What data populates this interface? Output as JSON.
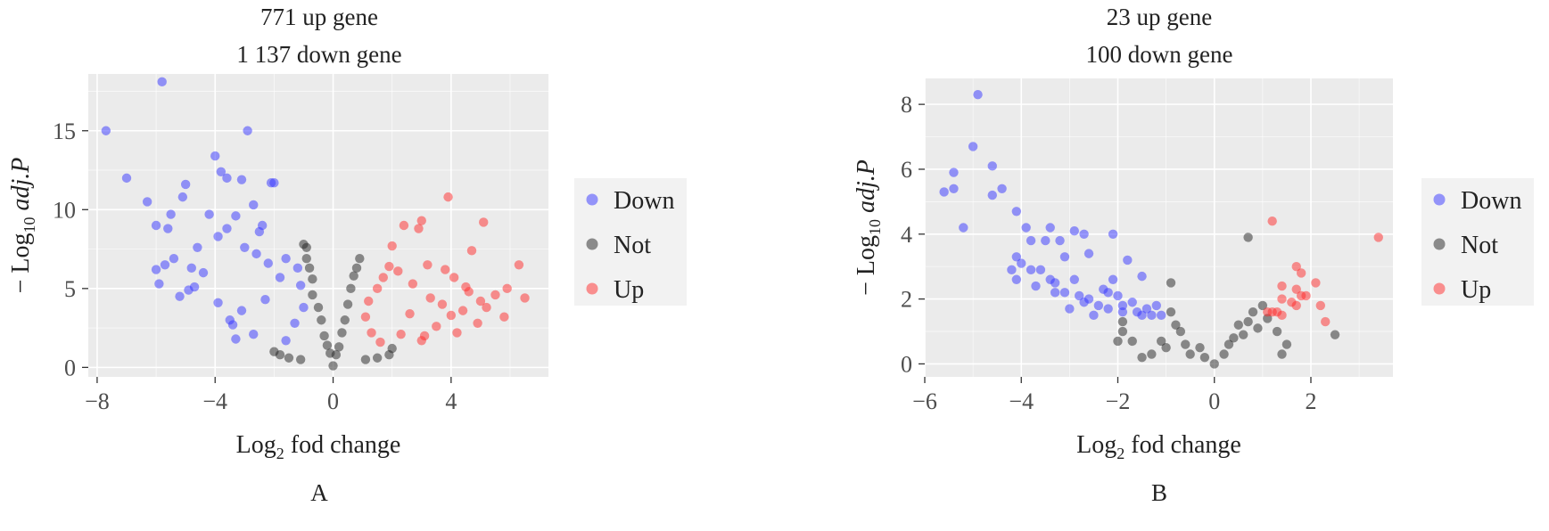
{
  "chart_data": [
    {
      "type": "scatter",
      "panel_label": "A",
      "title_lines": [
        "771 up gene",
        "1 137 down gene"
      ],
      "xlabel_main": "Log",
      "xlabel_sub": "2",
      "xlabel_rest": " fod change",
      "ylabel_prefix": "− Log",
      "ylabel_sub": "10",
      "ylabel_italic": " adj.P",
      "xlim": [
        -8.3,
        7.3
      ],
      "ylim": [
        -0.6,
        18.6
      ],
      "xticks": [
        -8,
        -4,
        0,
        4
      ],
      "xtick_labels": [
        "−8",
        "−4",
        "0",
        "4"
      ],
      "yticks": [
        0,
        5,
        10,
        15
      ],
      "ytick_labels": [
        "0",
        "5",
        "10",
        "15"
      ],
      "grid": true,
      "legend_position": "right",
      "series": [
        {
          "name": "Down",
          "color": "#3333ff"
        },
        {
          "name": "Not",
          "color": "#222222"
        },
        {
          "name": "Up",
          "color": "#ff2a2a"
        }
      ],
      "points": {
        "Down": [
          [
            -7.7,
            15.0
          ],
          [
            -5.8,
            18.1
          ],
          [
            -7.0,
            12.0
          ],
          [
            -2.9,
            15.0
          ],
          [
            -6.3,
            10.5
          ],
          [
            -6.0,
            9.0
          ],
          [
            -5.6,
            8.8
          ],
          [
            -5.5,
            9.7
          ],
          [
            -5.1,
            10.8
          ],
          [
            -5.0,
            11.6
          ],
          [
            -4.6,
            7.6
          ],
          [
            -4.8,
            6.3
          ],
          [
            -4.4,
            6.0
          ],
          [
            -4.2,
            9.7
          ],
          [
            -4.0,
            13.4
          ],
          [
            -3.8,
            12.4
          ],
          [
            -3.6,
            12.0
          ],
          [
            -3.3,
            9.6
          ],
          [
            -3.1,
            11.9
          ],
          [
            -2.7,
            10.3
          ],
          [
            -2.1,
            11.7
          ],
          [
            -2.0,
            11.7
          ],
          [
            -6.0,
            6.2
          ],
          [
            -5.9,
            5.3
          ],
          [
            -5.7,
            6.5
          ],
          [
            -5.4,
            6.9
          ],
          [
            -5.2,
            4.5
          ],
          [
            -4.9,
            4.9
          ],
          [
            -4.7,
            5.1
          ],
          [
            -3.9,
            4.1
          ],
          [
            -3.5,
            3.0
          ],
          [
            -3.4,
            2.7
          ],
          [
            -3.3,
            1.8
          ],
          [
            -2.4,
            9.0
          ],
          [
            -2.5,
            8.6
          ],
          [
            -3.9,
            8.3
          ],
          [
            -3.6,
            8.8
          ],
          [
            -3.0,
            7.6
          ],
          [
            -2.6,
            7.2
          ],
          [
            -2.2,
            6.6
          ],
          [
            -1.6,
            6.9
          ],
          [
            -1.2,
            6.3
          ],
          [
            -1.1,
            5.2
          ],
          [
            -1.0,
            3.8
          ],
          [
            -1.3,
            2.8
          ],
          [
            -1.6,
            1.7
          ],
          [
            -2.7,
            2.1
          ],
          [
            -3.1,
            3.6
          ],
          [
            -2.3,
            4.3
          ],
          [
            -1.8,
            5.7
          ]
        ],
        "Not": [
          [
            -1.0,
            7.8
          ],
          [
            -0.9,
            7.6
          ],
          [
            -0.9,
            6.9
          ],
          [
            -0.8,
            6.3
          ],
          [
            -0.7,
            5.6
          ],
          [
            -0.7,
            4.6
          ],
          [
            -0.5,
            3.8
          ],
          [
            -0.4,
            3.0
          ],
          [
            -0.3,
            2.0
          ],
          [
            -0.2,
            1.4
          ],
          [
            -0.1,
            0.9
          ],
          [
            0.0,
            0.1
          ],
          [
            0.1,
            0.8
          ],
          [
            0.2,
            1.3
          ],
          [
            0.3,
            2.2
          ],
          [
            0.4,
            3.0
          ],
          [
            0.5,
            4.0
          ],
          [
            0.6,
            5.0
          ],
          [
            0.7,
            5.8
          ],
          [
            0.8,
            6.3
          ],
          [
            0.9,
            6.9
          ],
          [
            -1.8,
            0.8
          ],
          [
            -1.5,
            0.6
          ],
          [
            -1.1,
            0.5
          ],
          [
            1.1,
            0.5
          ],
          [
            1.5,
            0.6
          ],
          [
            1.9,
            0.8
          ],
          [
            2.0,
            1.2
          ],
          [
            -2.0,
            1.0
          ]
        ],
        "Up": [
          [
            3.9,
            10.8
          ],
          [
            5.1,
            9.2
          ],
          [
            6.3,
            6.5
          ],
          [
            6.5,
            4.4
          ],
          [
            5.9,
            5.0
          ],
          [
            4.7,
            7.4
          ],
          [
            4.1,
            5.7
          ],
          [
            4.6,
            4.8
          ],
          [
            5.0,
            4.2
          ],
          [
            5.5,
            4.6
          ],
          [
            5.8,
            3.2
          ],
          [
            3.7,
            4.0
          ],
          [
            4.0,
            3.3
          ],
          [
            3.2,
            6.5
          ],
          [
            2.9,
            8.8
          ],
          [
            3.0,
            9.3
          ],
          [
            2.4,
            9.0
          ],
          [
            2.0,
            7.7
          ],
          [
            1.9,
            6.4
          ],
          [
            1.7,
            5.7
          ],
          [
            1.5,
            5.0
          ],
          [
            1.2,
            4.2
          ],
          [
            1.1,
            3.2
          ],
          [
            1.3,
            2.2
          ],
          [
            1.6,
            1.6
          ],
          [
            2.3,
            2.1
          ],
          [
            3.5,
            2.6
          ],
          [
            4.4,
            3.6
          ],
          [
            5.2,
            3.8
          ],
          [
            4.9,
            2.8
          ],
          [
            4.2,
            2.2
          ],
          [
            3.1,
            2.0
          ],
          [
            2.6,
            3.4
          ],
          [
            3.3,
            4.4
          ],
          [
            2.7,
            5.3
          ],
          [
            2.2,
            6.1
          ],
          [
            3.8,
            6.2
          ],
          [
            4.5,
            5.1
          ],
          [
            3.0,
            1.7
          ]
        ]
      }
    },
    {
      "type": "scatter",
      "panel_label": "B",
      "title_lines": [
        "23 up gene",
        "100 down gene"
      ],
      "xlabel_main": "Log",
      "xlabel_sub": "2",
      "xlabel_rest": " fod change",
      "ylabel_prefix": "− Log",
      "ylabel_sub": "10",
      "ylabel_italic": " adj.P",
      "xlim": [
        -6.0,
        3.7
      ],
      "ylim": [
        -0.4,
        8.8
      ],
      "xticks": [
        -6,
        -4,
        -2,
        0,
        2
      ],
      "xtick_labels": [
        "−6",
        "−4",
        "−2",
        "0",
        "2"
      ],
      "yticks": [
        0,
        2,
        4,
        6,
        8
      ],
      "ytick_labels": [
        "0",
        "2",
        "4",
        "6",
        "8"
      ],
      "grid": true,
      "legend_position": "right",
      "series": [
        {
          "name": "Down",
          "color": "#3333ff"
        },
        {
          "name": "Not",
          "color": "#222222"
        },
        {
          "name": "Up",
          "color": "#ff2a2a"
        }
      ],
      "points": {
        "Down": [
          [
            -4.9,
            8.3
          ],
          [
            -5.0,
            6.7
          ],
          [
            -5.4,
            5.9
          ],
          [
            -5.6,
            5.3
          ],
          [
            -5.4,
            5.4
          ],
          [
            -4.6,
            6.1
          ],
          [
            -4.6,
            5.2
          ],
          [
            -4.4,
            5.4
          ],
          [
            -5.2,
            4.2
          ],
          [
            -4.1,
            4.7
          ],
          [
            -3.9,
            4.2
          ],
          [
            -3.8,
            3.8
          ],
          [
            -3.5,
            3.8
          ],
          [
            -3.4,
            4.2
          ],
          [
            -3.2,
            3.8
          ],
          [
            -2.9,
            4.1
          ],
          [
            -2.7,
            4.0
          ],
          [
            -2.6,
            3.4
          ],
          [
            -2.1,
            4.0
          ],
          [
            -1.8,
            3.2
          ],
          [
            -1.5,
            2.7
          ],
          [
            -4.1,
            3.3
          ],
          [
            -4.2,
            2.9
          ],
          [
            -4.1,
            2.6
          ],
          [
            -3.8,
            2.9
          ],
          [
            -3.6,
            2.9
          ],
          [
            -3.4,
            2.6
          ],
          [
            -3.3,
            2.5
          ],
          [
            -3.1,
            2.2
          ],
          [
            -2.9,
            2.6
          ],
          [
            -2.8,
            2.1
          ],
          [
            -2.7,
            1.9
          ],
          [
            -2.6,
            2.0
          ],
          [
            -2.4,
            1.8
          ],
          [
            -2.3,
            2.3
          ],
          [
            -2.2,
            1.7
          ],
          [
            -2.0,
            2.1
          ],
          [
            -1.9,
            1.6
          ],
          [
            -1.7,
            1.9
          ],
          [
            -1.6,
            1.6
          ],
          [
            -1.4,
            1.7
          ],
          [
            -1.3,
            1.5
          ],
          [
            -1.2,
            1.8
          ],
          [
            -1.1,
            1.5
          ],
          [
            -3.0,
            1.7
          ],
          [
            -2.5,
            1.5
          ],
          [
            -3.7,
            2.4
          ],
          [
            -2.1,
            2.6
          ],
          [
            -1.9,
            1.8
          ],
          [
            -1.5,
            1.5
          ],
          [
            -2.2,
            2.2
          ],
          [
            -3.3,
            2.2
          ],
          [
            -4.0,
            3.1
          ],
          [
            -3.1,
            3.3
          ]
        ],
        "Not": [
          [
            -1.9,
            1.0
          ],
          [
            -1.7,
            0.7
          ],
          [
            -1.3,
            0.3
          ],
          [
            -1.0,
            0.5
          ],
          [
            -0.9,
            1.6
          ],
          [
            -0.8,
            1.2
          ],
          [
            -0.7,
            1.0
          ],
          [
            -0.6,
            0.6
          ],
          [
            -0.5,
            0.3
          ],
          [
            -0.3,
            0.5
          ],
          [
            -0.2,
            0.2
          ],
          [
            0.0,
            0.0
          ],
          [
            0.2,
            0.3
          ],
          [
            0.3,
            0.6
          ],
          [
            0.4,
            0.8
          ],
          [
            0.5,
            1.2
          ],
          [
            0.6,
            0.9
          ],
          [
            0.7,
            1.3
          ],
          [
            0.8,
            1.6
          ],
          [
            0.9,
            1.1
          ],
          [
            1.0,
            1.8
          ],
          [
            1.1,
            1.4
          ],
          [
            1.3,
            1.0
          ],
          [
            1.5,
            0.6
          ],
          [
            0.7,
            3.9
          ],
          [
            2.5,
            0.9
          ],
          [
            -1.5,
            0.2
          ],
          [
            -1.1,
            0.7
          ],
          [
            1.4,
            0.3
          ],
          [
            -0.9,
            2.5
          ],
          [
            -2.0,
            0.7
          ],
          [
            -1.9,
            1.3
          ]
        ],
        "Up": [
          [
            1.2,
            4.4
          ],
          [
            3.4,
            3.9
          ],
          [
            1.7,
            3.0
          ],
          [
            1.8,
            2.8
          ],
          [
            2.1,
            2.5
          ],
          [
            1.4,
            2.4
          ],
          [
            1.7,
            2.3
          ],
          [
            1.8,
            2.1
          ],
          [
            1.9,
            2.1
          ],
          [
            1.4,
            2.0
          ],
          [
            1.6,
            1.9
          ],
          [
            2.2,
            1.8
          ],
          [
            1.2,
            1.6
          ],
          [
            1.3,
            1.6
          ],
          [
            1.4,
            1.5
          ],
          [
            2.3,
            1.3
          ],
          [
            1.7,
            1.8
          ],
          [
            1.1,
            1.6
          ]
        ]
      }
    }
  ]
}
